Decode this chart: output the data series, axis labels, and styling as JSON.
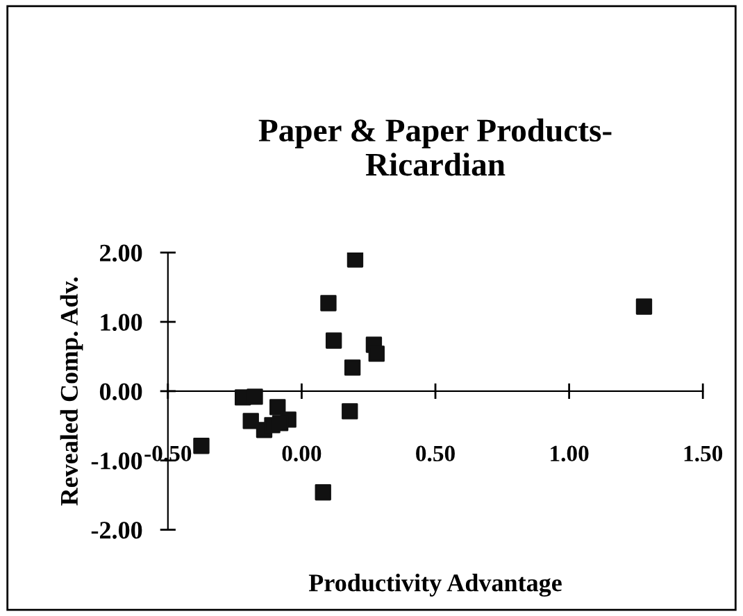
{
  "chart_data": {
    "type": "scatter",
    "title": "Paper & Paper Products-\nRicardian",
    "xlabel": "Productivity Advantage",
    "ylabel": "Revealed Comp. Adv.",
    "x": [
      0.2,
      0.1,
      0.12,
      0.27,
      0.28,
      0.19,
      0.18,
      0.08,
      -0.375,
      -0.22,
      -0.175,
      -0.19,
      -0.14,
      -0.09,
      -0.11,
      -0.05,
      -0.08,
      1.28
    ],
    "series": [
      {
        "color": "#111111",
        "values": [
          1.9,
          1.27,
          0.73,
          0.67,
          0.54,
          0.34,
          -0.29,
          -1.46,
          -0.79,
          -0.09,
          -0.08,
          -0.43,
          -0.56,
          -0.23,
          -0.49,
          -0.41,
          -0.46,
          1.22
        ]
      }
    ],
    "marker": "square",
    "grid": false,
    "legend": false,
    "xlim": [
      -0.5,
      1.5
    ],
    "xticks": [
      {
        "value": -0.5,
        "label": "-0.50"
      },
      {
        "value": 0,
        "label": "0.00"
      },
      {
        "value": 0.5,
        "label": "0.50"
      },
      {
        "value": 1,
        "label": "1.00"
      },
      {
        "value": 1.5,
        "label": "1.50"
      }
    ],
    "ylim": [
      -2,
      2
    ],
    "yticks": [
      {
        "value": -2,
        "label": "-2.00"
      },
      {
        "value": -1,
        "label": "-1.00"
      },
      {
        "value": 0,
        "label": "0.00"
      },
      {
        "value": 1,
        "label": "1.00"
      },
      {
        "value": 2,
        "label": "2.00"
      }
    ]
  }
}
